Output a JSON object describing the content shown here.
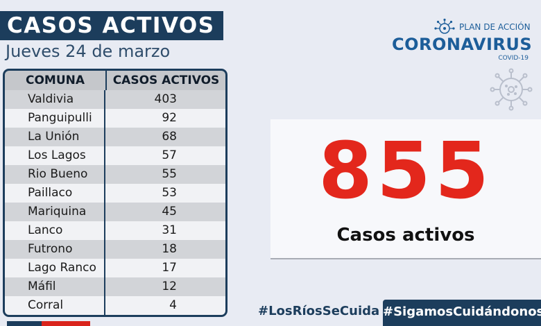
{
  "header": {
    "title": "CASOS ACTIVOS",
    "date": "Jueves 24 de marzo"
  },
  "table": {
    "columns": [
      "COMUNA",
      "CASOS ACTIVOS"
    ],
    "rows": [
      {
        "comuna": "Valdivia",
        "casos": "403"
      },
      {
        "comuna": "Panguipulli",
        "casos": "92"
      },
      {
        "comuna": "La Unión",
        "casos": "68"
      },
      {
        "comuna": "Los Lagos",
        "casos": "57"
      },
      {
        "comuna": "Rio Bueno",
        "casos": "55"
      },
      {
        "comuna": "Paillaco",
        "casos": "53"
      },
      {
        "comuna": "Mariquina",
        "casos": "45"
      },
      {
        "comuna": "Lanco",
        "casos": "31"
      },
      {
        "comuna": "Futrono",
        "casos": "18"
      },
      {
        "comuna": "Lago Ranco",
        "casos": "17"
      },
      {
        "comuna": "Máfil",
        "casos": "12"
      },
      {
        "comuna": "Corral",
        "casos": "4"
      }
    ]
  },
  "logo": {
    "plan": "PLAN DE ACCIÓN",
    "main": "CORONAVIRUS",
    "sub": "COVID-19"
  },
  "stat": {
    "value": "855",
    "label": "Casos activos"
  },
  "footer": {
    "hashtag_1": "#LosRíosSeCuida",
    "hashtag_2": "#SigamosCuidándonos"
  },
  "colors": {
    "navy": "#1c3d5c",
    "red": "#e3271c",
    "brand_blue": "#1c5d99",
    "background": "#e8ebf3"
  }
}
